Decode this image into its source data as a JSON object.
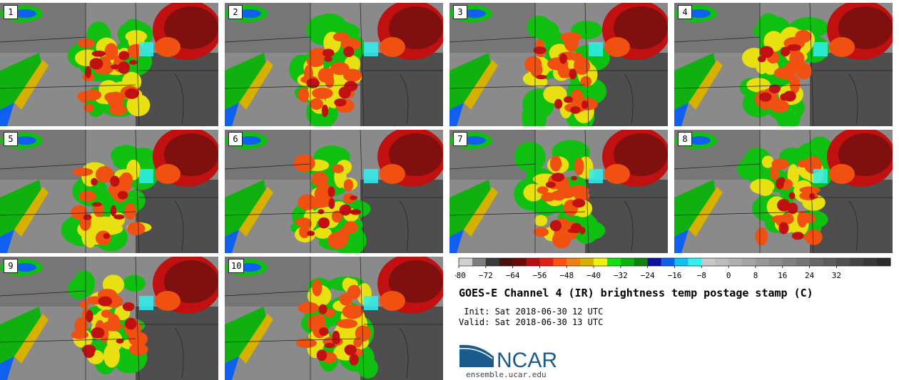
{
  "panels": [
    {
      "label": "1"
    },
    {
      "label": "2"
    },
    {
      "label": "3"
    },
    {
      "label": "4"
    },
    {
      "label": "5"
    },
    {
      "label": "6"
    },
    {
      "label": "7"
    },
    {
      "label": "8"
    },
    {
      "label": "9"
    },
    {
      "label": "10"
    }
  ],
  "colorbar": {
    "ticks": [
      "−80",
      "−72",
      "−64",
      "−56",
      "−48",
      "−40",
      "−32",
      "−24",
      "−16",
      "−8",
      "0",
      "8",
      "16",
      "24",
      "32"
    ],
    "colors": [
      "#d0d0d0",
      "#7e7e7e",
      "#3a3a3a",
      "#4a1010",
      "#6a0a0a",
      "#b01010",
      "#e02010",
      "#ff5010",
      "#f08010",
      "#d8b000",
      "#f0f010",
      "#10e010",
      "#10b010",
      "#108010",
      "#1010a0",
      "#1060f0",
      "#10c0f0",
      "#30f0f0",
      "#c8c8c8",
      "#bcbcbc",
      "#b0b0b0",
      "#a4a4a4",
      "#989898",
      "#8c8c8c",
      "#808080",
      "#747474",
      "#686868",
      "#5c5c5c",
      "#505050",
      "#444444",
      "#383838",
      "#2c2c2c"
    ]
  },
  "title": "GOES-E Channel 4 (IR) brightness temp postage stamp (C)",
  "init": " Init: Sat 2018-06-30 12 UTC",
  "valid": "Valid: Sat 2018-06-30 13 UTC",
  "logo": {
    "text": "NCAR",
    "url": "ensemble.ucar.edu",
    "brand_color": "#1a5a8c"
  }
}
